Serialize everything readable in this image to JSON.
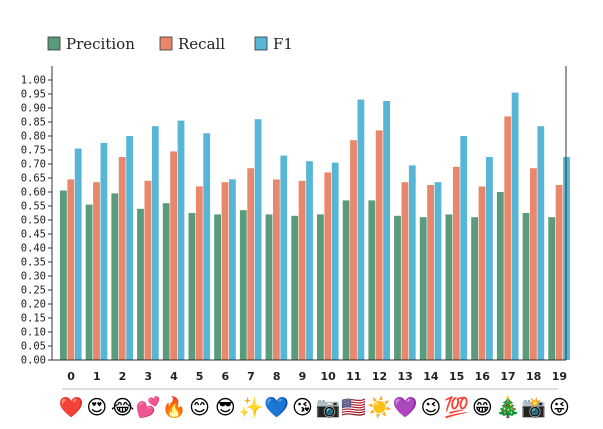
{
  "chart_data": {
    "type": "bar",
    "categories": [
      "0",
      "1",
      "2",
      "3",
      "4",
      "5",
      "6",
      "7",
      "8",
      "9",
      "10",
      "11",
      "12",
      "13",
      "14",
      "15",
      "16",
      "17",
      "18",
      "19"
    ],
    "category_emojis": [
      "❤️",
      "😍",
      "😂",
      "💕",
      "🔥",
      "😊",
      "😎",
      "✨",
      "💙",
      "😘",
      "📷",
      "🇺🇸",
      "☀️",
      "💜",
      "😉",
      "💯",
      "😁",
      "🎄",
      "📸",
      "😜"
    ],
    "series": [
      {
        "name": "Precition",
        "color": "#5a9b7c",
        "values": [
          0.605,
          0.555,
          0.595,
          0.54,
          0.56,
          0.525,
          0.52,
          0.535,
          0.52,
          0.515,
          0.52,
          0.57,
          0.57,
          0.515,
          0.51,
          0.52,
          0.51,
          0.6,
          0.525,
          0.51
        ]
      },
      {
        "name": "Recall",
        "color": "#e8876b",
        "values": [
          0.645,
          0.635,
          0.725,
          0.64,
          0.745,
          0.62,
          0.635,
          0.685,
          0.645,
          0.64,
          0.67,
          0.785,
          0.82,
          0.635,
          0.625,
          0.69,
          0.62,
          0.87,
          0.685,
          0.625
        ]
      },
      {
        "name": "F1",
        "color": "#57b6d6",
        "values": [
          0.755,
          0.775,
          0.8,
          0.835,
          0.855,
          0.81,
          0.645,
          0.86,
          0.73,
          0.71,
          0.705,
          0.93,
          0.925,
          0.695,
          0.635,
          0.8,
          0.725,
          0.955,
          0.835,
          0.725
        ]
      }
    ],
    "ylim": [
      0.0,
      1.0
    ],
    "yticks": [
      "0.00",
      "0.05",
      "0.10",
      "0.15",
      "0.20",
      "0.25",
      "0.30",
      "0.35",
      "0.40",
      "0.45",
      "0.50",
      "0.55",
      "0.60",
      "0.65",
      "0.70",
      "0.75",
      "0.80",
      "0.85",
      "0.90",
      "0.95",
      "1.00"
    ],
    "legend_position": "top-left",
    "grid": false
  }
}
